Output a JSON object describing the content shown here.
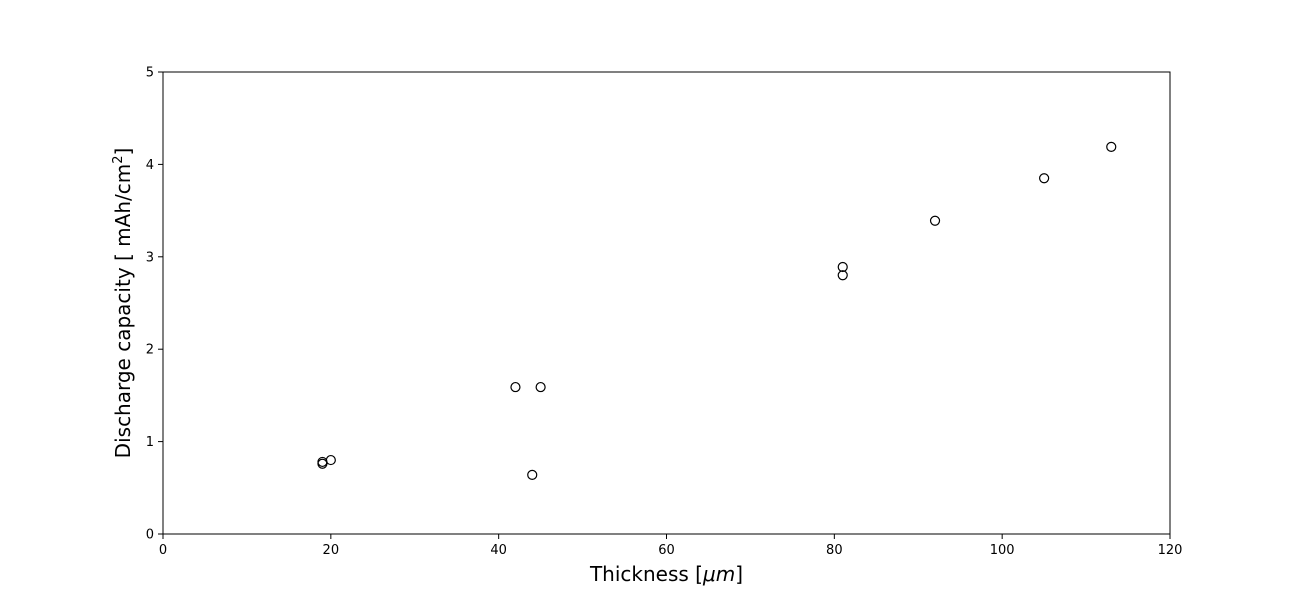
{
  "chart_data": {
    "type": "scatter",
    "title": "",
    "xlabel": "Thickness [",
    "xlabel_math": "μm",
    "xlabel_suffix": "]",
    "ylabel": "Discharge capacity [ mAh/cm",
    "ylabel_sup": "2",
    "ylabel_suffix": "]",
    "xlim": [
      0,
      120
    ],
    "ylim": [
      0,
      5
    ],
    "xticks": [
      0,
      20,
      40,
      60,
      80,
      100,
      120
    ],
    "yticks": [
      0,
      1,
      2,
      3,
      4,
      5
    ],
    "grid": false,
    "marker": "open-circle",
    "marker_color": "#000000",
    "points": [
      {
        "x": 19,
        "y": 0.76
      },
      {
        "x": 19,
        "y": 0.78
      },
      {
        "x": 20,
        "y": 0.8
      },
      {
        "x": 42,
        "y": 1.59
      },
      {
        "x": 45,
        "y": 1.59
      },
      {
        "x": 44,
        "y": 0.64
      },
      {
        "x": 81,
        "y": 2.8
      },
      {
        "x": 81,
        "y": 2.89
      },
      {
        "x": 92,
        "y": 3.39
      },
      {
        "x": 105,
        "y": 3.85
      },
      {
        "x": 113,
        "y": 4.19
      }
    ]
  }
}
